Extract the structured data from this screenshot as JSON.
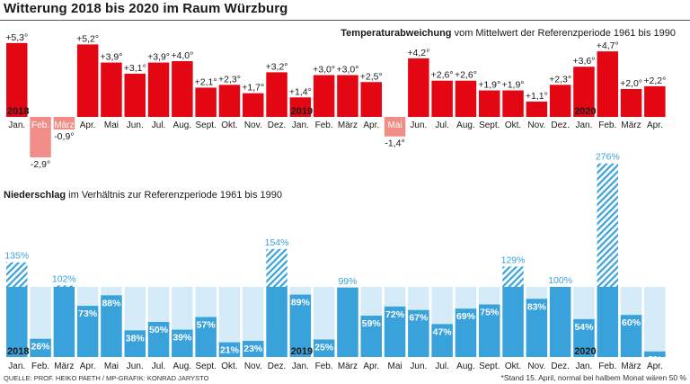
{
  "title": "Witterung 2018 bis 2020 im Raum Würzburg",
  "chart_data": [
    {
      "type": "bar",
      "title_bold": "Temperaturabweichung",
      "title_rest": " vom Mittelwert der Referenzperiode 1961 bis 1990",
      "categories": [
        "Jan.",
        "Feb.",
        "März",
        "Apr.",
        "Mai",
        "Jun.",
        "Jul.",
        "Aug.",
        "Sept.",
        "Okt.",
        "Nov.",
        "Dez.",
        "Jan.",
        "Feb.",
        "März",
        "Apr.",
        "Mai",
        "Jun.",
        "Jul.",
        "Aug.",
        "Sept.",
        "Okt.",
        "Nov.",
        "Dez.",
        "Jan.",
        "Feb.",
        "März",
        "Apr."
      ],
      "values": [
        5.3,
        -2.9,
        -0.9,
        5.2,
        3.9,
        3.1,
        3.9,
        4.0,
        2.1,
        2.3,
        1.7,
        3.2,
        1.4,
        3.0,
        3.0,
        2.5,
        -1.4,
        4.2,
        2.6,
        2.6,
        1.9,
        1.9,
        1.1,
        2.3,
        3.6,
        4.7,
        2.0,
        2.2
      ],
      "value_labels": [
        "+5,3°",
        "-2,9°",
        "-0,9°",
        "+5,2°",
        "+3,9°",
        "+3,1°",
        "+3,9°",
        "+4,0°",
        "+2,1°",
        "+2,3°",
        "+1,7°",
        "+3,2°",
        "+1,4°",
        "+3,0°",
        "+3,0°",
        "+2,5°",
        "-1,4°",
        "+4,2°",
        "+2,6°",
        "+2,6°",
        "+1,9°",
        "+1,9°",
        "+1,1°",
        "+2,3°",
        "+3,6°",
        "+4,7°",
        "+2,0°",
        "+2,2°"
      ],
      "year_labels": [
        {
          "index": 0,
          "text": "2018"
        },
        {
          "index": 12,
          "text": "2019"
        },
        {
          "index": 24,
          "text": "2020"
        }
      ],
      "colors": {
        "positive": "#e30613",
        "negative": "#f08d86"
      },
      "unit": "°C"
    },
    {
      "type": "bar",
      "title_bold": "Niederschlag",
      "title_rest": " im Verhältnis zur Referenzperiode 1961 bis 1990",
      "categories": [
        "Jan.",
        "Feb.",
        "März",
        "Apr.",
        "Mai",
        "Jun.",
        "Jul.",
        "Aug.",
        "Sept.",
        "Okt.",
        "Nov.",
        "Dez.",
        "Jan.",
        "Feb.",
        "März",
        "Apr.",
        "Mai",
        "Jun.",
        "Jul.",
        "Aug.",
        "Sept.",
        "Okt.",
        "Nov.",
        "Dez.",
        "Jan.",
        "Feb.",
        "März",
        "Apr."
      ],
      "values": [
        135,
        26,
        102,
        73,
        88,
        38,
        50,
        39,
        57,
        21,
        23,
        154,
        89,
        25,
        99,
        59,
        72,
        67,
        47,
        69,
        75,
        129,
        83,
        100,
        54,
        276,
        60,
        8
      ],
      "value_labels": [
        "135%",
        "26%",
        "102%",
        "73%",
        "88%",
        "38%",
        "50%",
        "39%",
        "57%",
        "21%",
        "23%",
        "154%",
        "89%",
        "25%",
        "99%",
        "59%",
        "72%",
        "67%",
        "47%",
        "69%",
        "75%",
        "129%",
        "83%",
        "100%",
        "54%",
        "276%",
        "60%",
        "8%"
      ],
      "reference_pct": 100,
      "year_labels": [
        {
          "index": 0,
          "text": "2018"
        },
        {
          "index": 12,
          "text": "2019"
        },
        {
          "index": 24,
          "text": "2020"
        }
      ],
      "colors": {
        "bar": "#3aa2da",
        "reference": "#d5ecf8",
        "excess": "#3aa2da",
        "label": "#3aa2da"
      },
      "unit": "%"
    }
  ],
  "footer": {
    "source": "QUELLE: PROF. HEIKO PAETH / MP-GRAFIK: KONRAD JARYSTO",
    "note": "*Stand 15. April, normal bei halbem Monat wären 50 %"
  }
}
